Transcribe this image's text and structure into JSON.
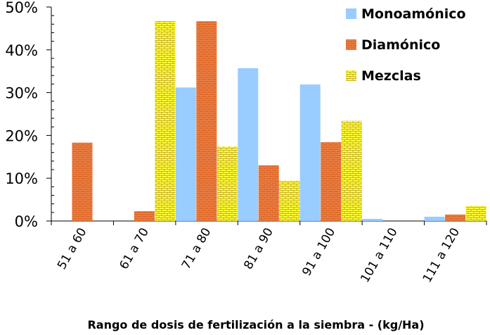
{
  "chart_data": {
    "type": "bar",
    "title": "",
    "xlabel": "Rango de dosis de fertilización a  la siembra - (kg/Ha)",
    "ylabel": "",
    "ylim": [
      0,
      50
    ],
    "yticks": [
      "0%",
      "10%",
      "20%",
      "30%",
      "40%",
      "50%"
    ],
    "categories": [
      "51 a 60",
      "61 a 70",
      "71 a 80",
      "81 a 90",
      "91 a 100",
      "101 a 110",
      "111 a 120"
    ],
    "series": [
      {
        "name": "Monoamónico",
        "color": "#99ccff",
        "values": [
          0,
          0,
          31.2,
          35.7,
          31.9,
          0.5,
          1.0
        ]
      },
      {
        "name": "Diamónico",
        "color": "#e06a2a",
        "values": [
          18.3,
          2.3,
          46.7,
          13.0,
          18.4,
          0,
          1.5
        ]
      },
      {
        "name": "Mezclas",
        "color": "#ffff33",
        "values": [
          0,
          46.7,
          17.4,
          9.4,
          23.4,
          0,
          3.5
        ]
      }
    ],
    "legend": "top-right",
    "grid": false
  }
}
